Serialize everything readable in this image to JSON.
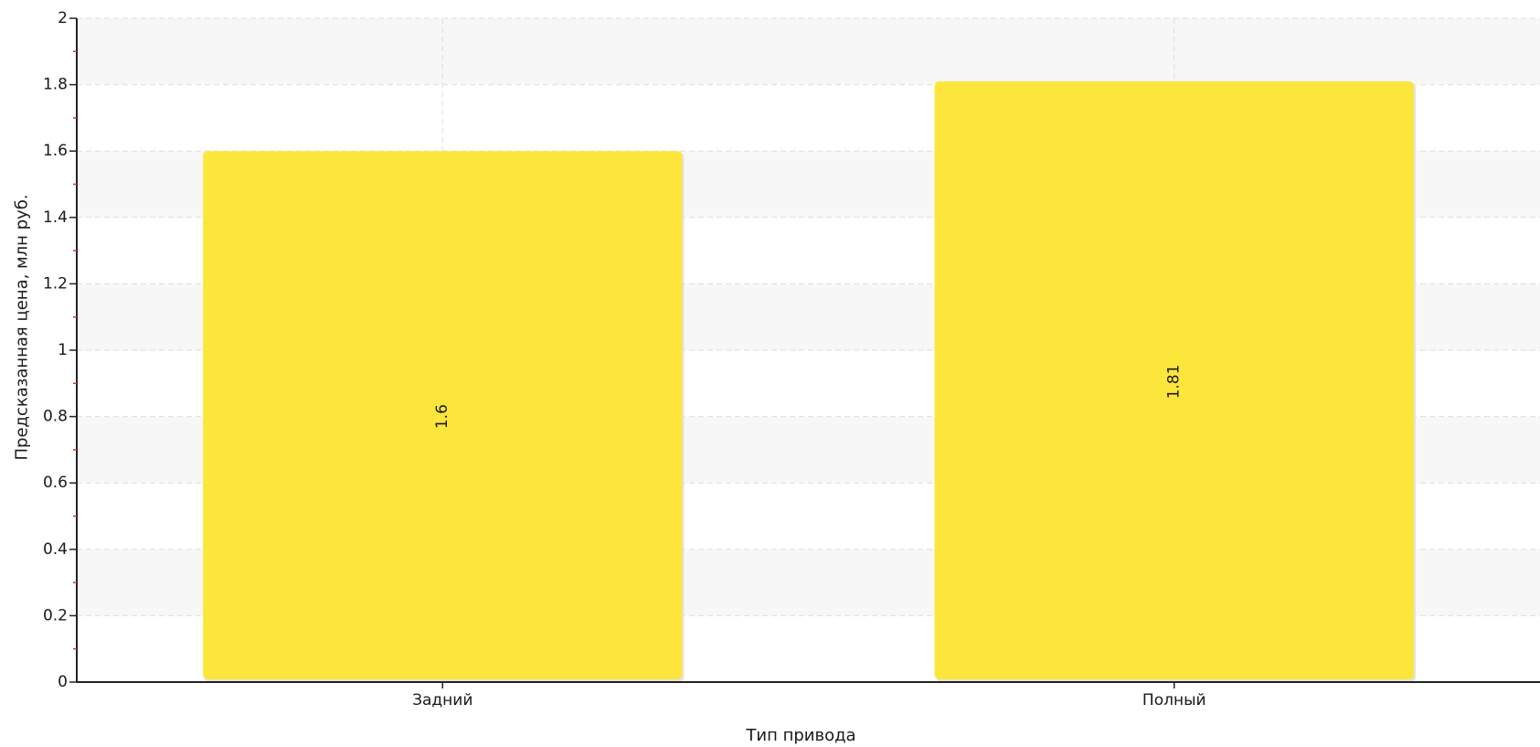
{
  "chart_data": {
    "type": "bar",
    "categories": [
      "Задний",
      "Полный"
    ],
    "values": [
      1.6,
      1.81
    ],
    "value_labels": [
      "1.6",
      "1.81"
    ],
    "title": "",
    "xlabel": "Тип привода",
    "ylabel": "Предсказанная цена, млн руб.",
    "ylim": [
      0,
      2
    ],
    "yticks": [
      0,
      0.2,
      0.4,
      0.6,
      0.8,
      1,
      1.2,
      1.4,
      1.6,
      1.8,
      2
    ],
    "ytick_labels": [
      "0",
      "0.2",
      "0.4",
      "0.6",
      "0.8",
      "1",
      "1.2",
      "1.4",
      "1.6",
      "1.8",
      "2"
    ],
    "grid": true,
    "legend": "none",
    "colors": {
      "bar": "#fde63b",
      "band": "#f7f7f7",
      "grid": "#dddddd",
      "axis": "#222222",
      "minor_tick": "#e03030"
    }
  }
}
